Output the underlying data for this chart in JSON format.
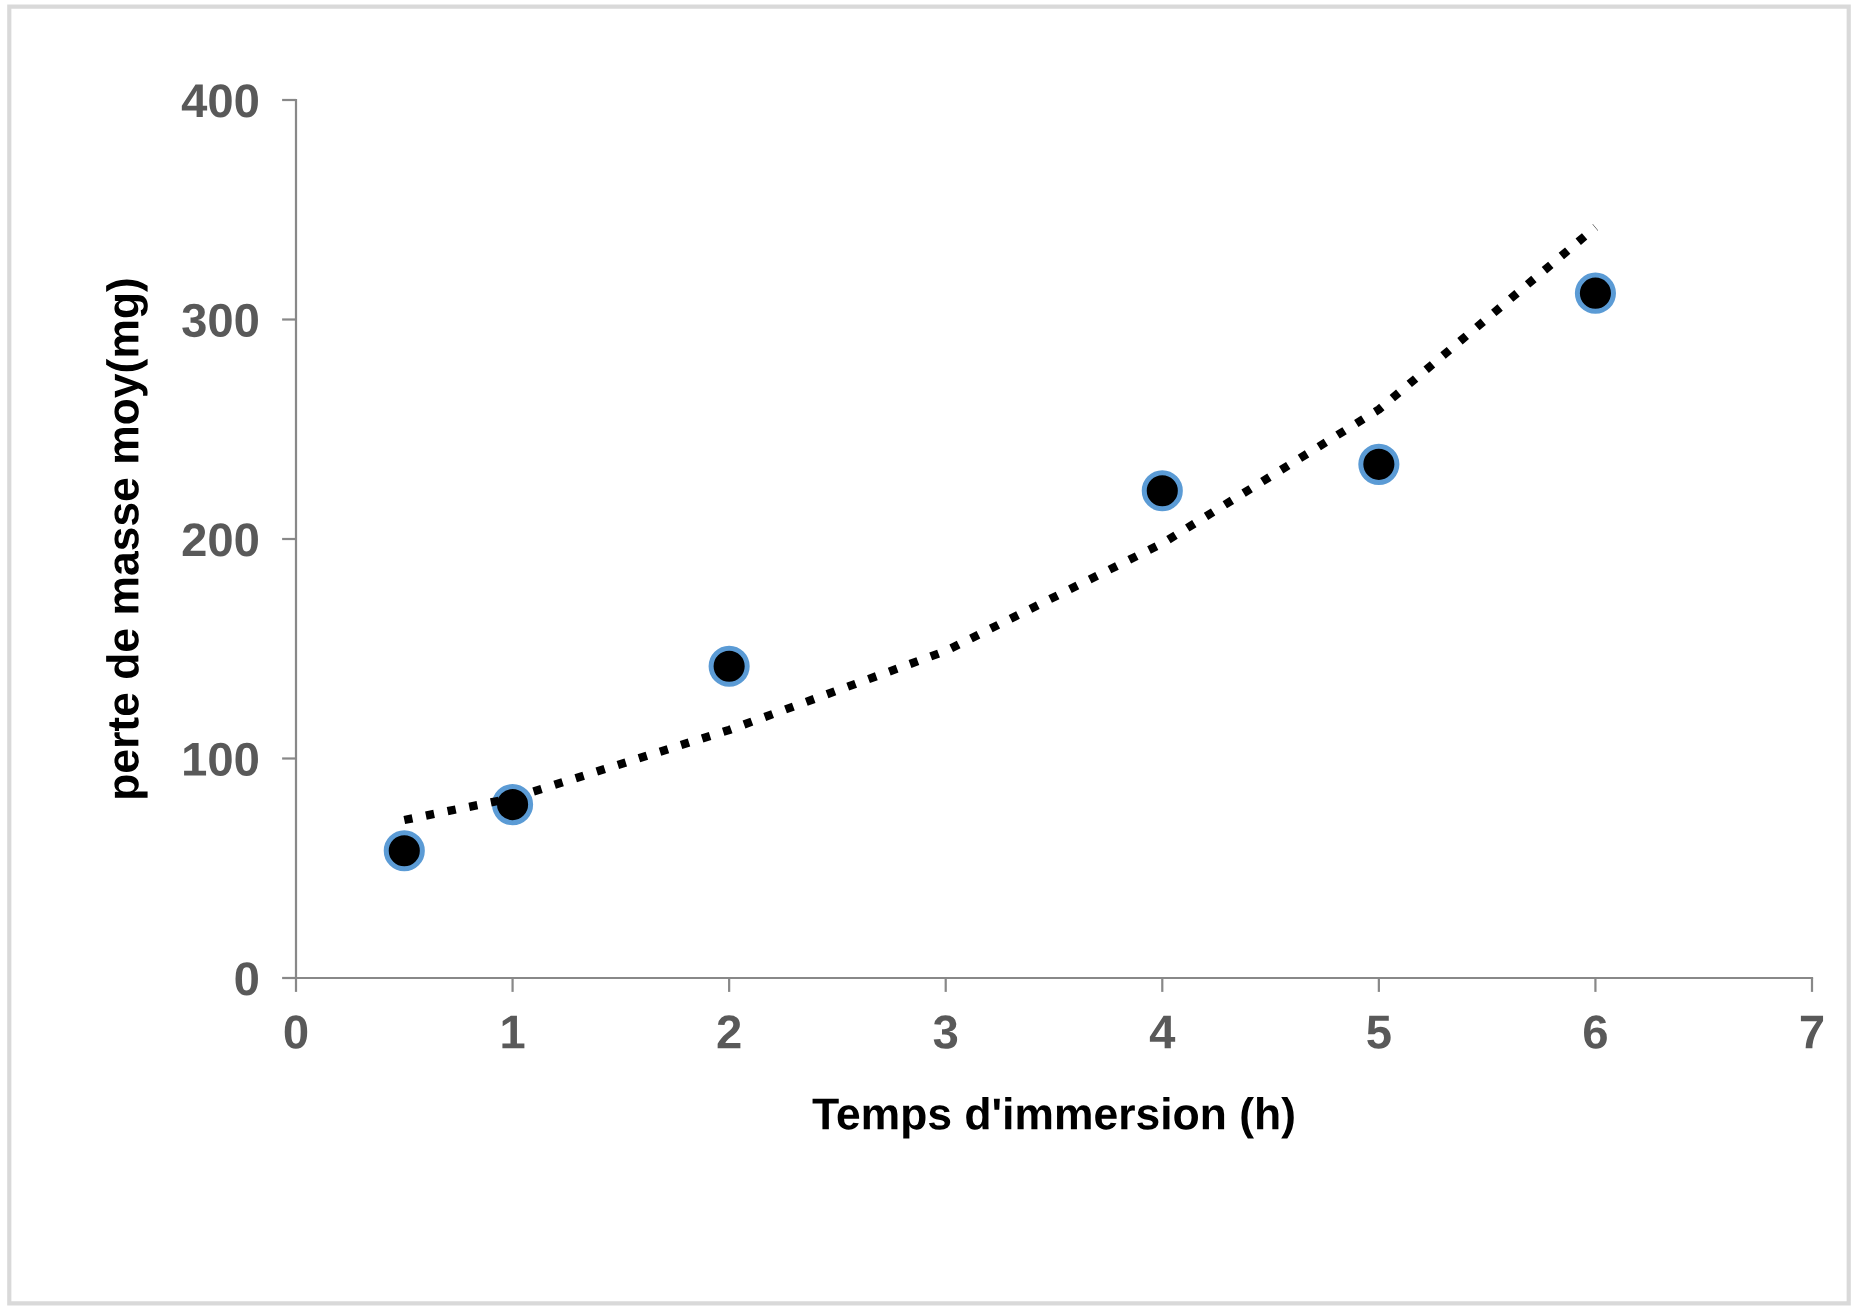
{
  "chart_data": {
    "type": "scatter",
    "xlabel": "Temps d'immersion (h)",
    "ylabel": "perte de masse moy(mg)",
    "xlim": [
      0,
      7
    ],
    "xticks": [
      0,
      1,
      2,
      3,
      4,
      5,
      6,
      7
    ],
    "ylim": [
      0,
      400
    ],
    "yticks": [
      0,
      100,
      200,
      300,
      400
    ],
    "grid": false,
    "legend": false,
    "series": [
      {
        "color": "#000000",
        "marker": "circle",
        "x": [
          0.5,
          1,
          2,
          4,
          5,
          6
        ],
        "values": [
          58,
          79,
          142,
          222,
          234,
          312
        ]
      },
      {
        "type": "line",
        "color": "#000000",
        "line_style": "dotted",
        "marker": "none",
        "x": [
          0.5,
          1,
          2,
          3,
          4,
          5,
          6
        ],
        "values": [
          72,
          82,
          113,
          149,
          198,
          259,
          342
        ]
      }
    ]
  }
}
